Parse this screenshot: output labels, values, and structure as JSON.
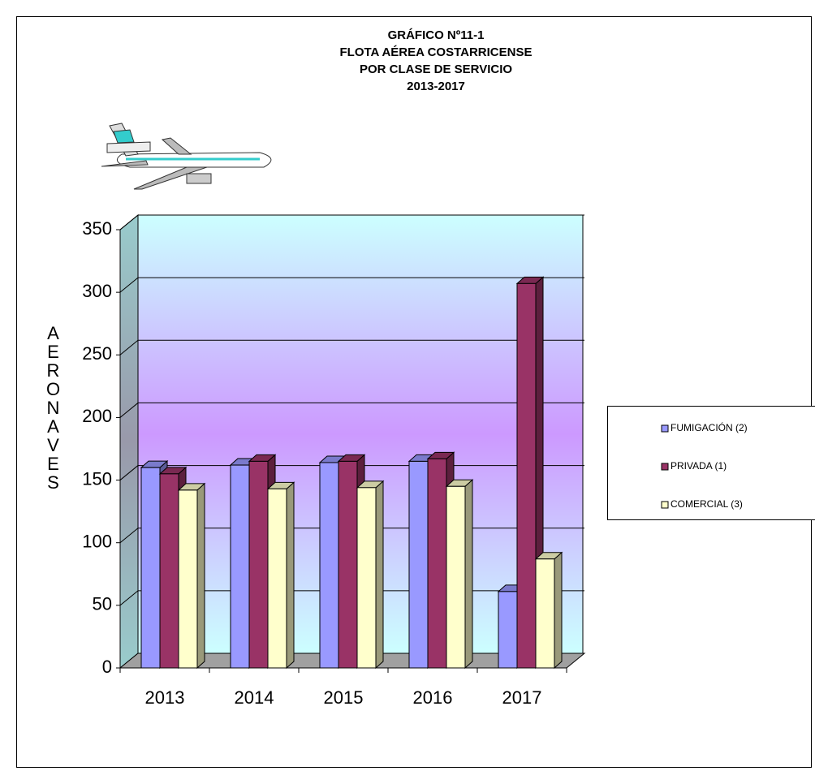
{
  "chart_data": {
    "type": "bar3d",
    "title": [
      "GRÁFICO Nº11-1",
      "FLOTA AÉREA  COSTARRICENSE",
      "POR CLASE DE SERVICIO",
      "2013-2017"
    ],
    "y_label": "AERONAVES",
    "categories": [
      "2013",
      "2014",
      "2015",
      "2016",
      "2017"
    ],
    "series": [
      {
        "name": "FUMIGACIÓN (2)",
        "color": "#9999ff",
        "values": [
          160,
          162,
          164,
          165,
          61
        ]
      },
      {
        "name": "PRIVADA (1)",
        "color": "#993366",
        "values": [
          155,
          165,
          165,
          167,
          307
        ]
      },
      {
        "name": "COMERCIAL (3)",
        "color": "#ffffcc",
        "values": [
          142,
          143,
          144,
          145,
          87
        ]
      }
    ],
    "ylim": [
      0,
      350
    ],
    "yticks": [
      0,
      50,
      100,
      150,
      200,
      250,
      300,
      350
    ],
    "grid": true
  }
}
